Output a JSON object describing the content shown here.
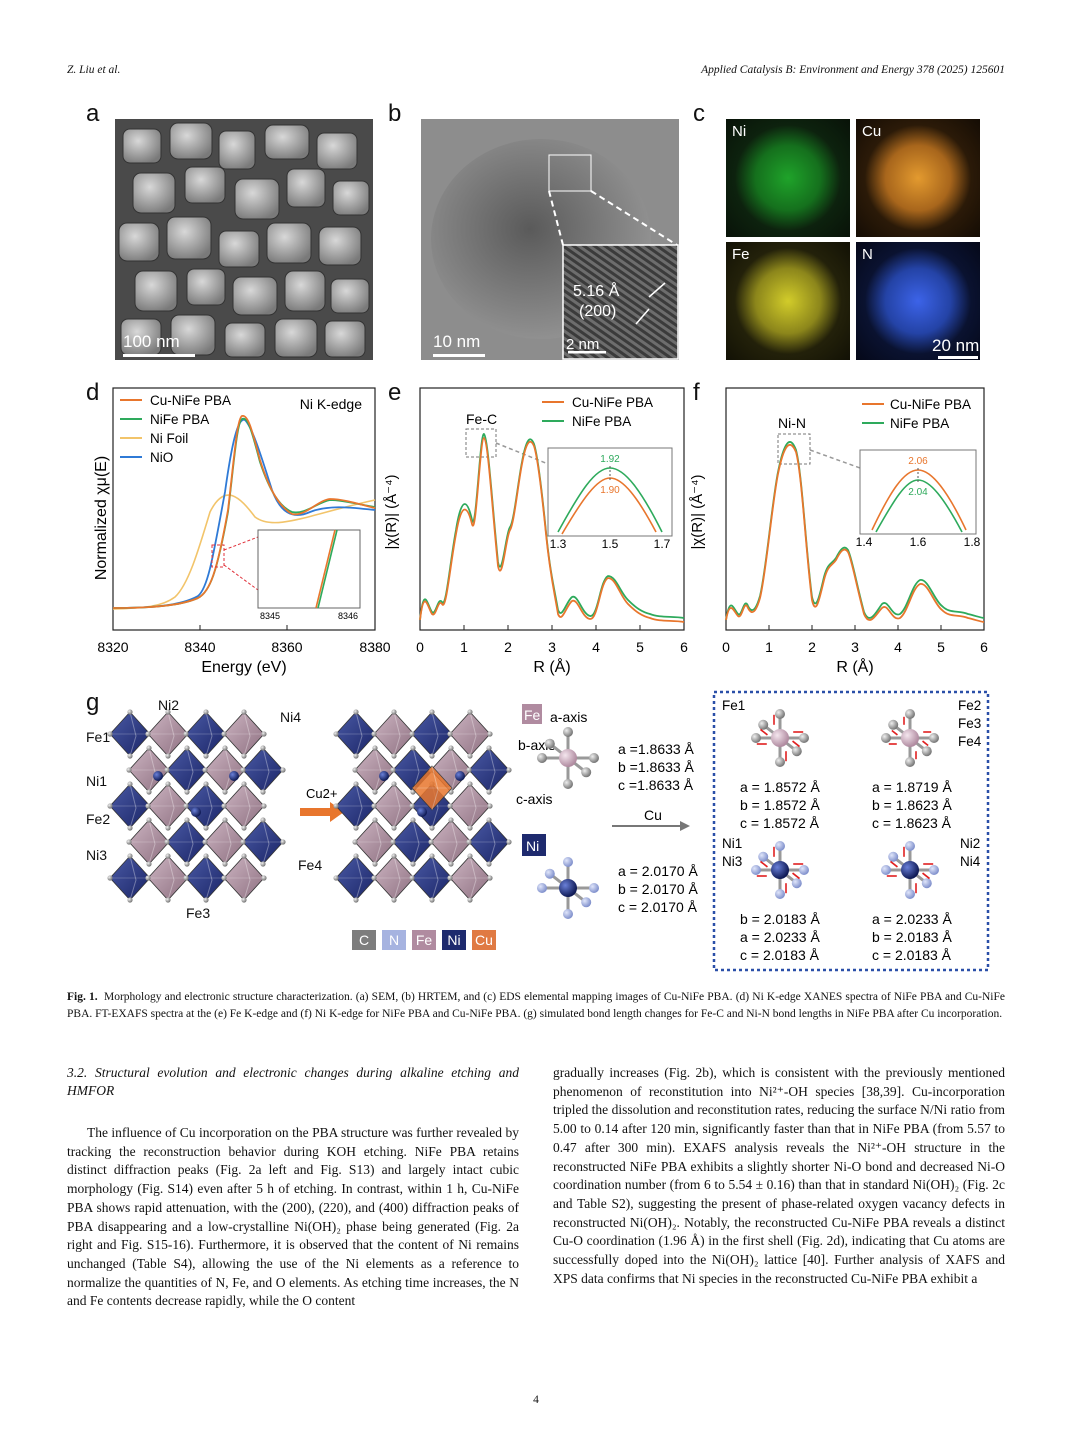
{
  "header": {
    "left": "Z. Liu et al.",
    "right": "Applied Catalysis B: Environment and Energy 378 (2025) 125601"
  },
  "figure": {
    "panels": {
      "a": "a",
      "b": "b",
      "c": "c",
      "d": "d",
      "e": "e",
      "f": "f",
      "g": "g"
    },
    "a": {
      "scalebar": "100 nm"
    },
    "b": {
      "scalebar": "10 nm",
      "inset_scalebar": "2 nm",
      "lattice_spacing": "5.16 Å",
      "plane": "(200)"
    },
    "c": {
      "scalebar": "20 nm",
      "maps": [
        "Ni",
        "Cu",
        "Fe",
        "N"
      ]
    },
    "d": {
      "title": "Ni K-edge",
      "xlabel": "Energy (eV)",
      "ylabel": "Normalized χμ(E)",
      "xticks": [
        "8320",
        "8340",
        "8360",
        "8380"
      ],
      "inset_xticks": [
        "8345",
        "8346"
      ],
      "legend": [
        "Cu-NiFe PBA",
        "NiFe PBA",
        "Ni Foil",
        "NiO"
      ]
    },
    "e": {
      "xlabel": "R (Å)",
      "ylabel": "|χ(R)| (Å⁻⁴)",
      "xticks": [
        "0",
        "1",
        "2",
        "3",
        "4",
        "5",
        "6"
      ],
      "peak_label": "Fe-C",
      "legend": [
        "Cu-NiFe PBA",
        "NiFe PBA"
      ],
      "inset_xticks": [
        "1.3",
        "1.5",
        "1.7"
      ],
      "inset_values": [
        "1.92",
        "1.90"
      ]
    },
    "f": {
      "xlabel": "R (Å)",
      "ylabel": "|χ(R)| (Å⁻⁴)",
      "xticks": [
        "0",
        "1",
        "2",
        "3",
        "4",
        "5",
        "6"
      ],
      "peak_label": "Ni-N",
      "legend": [
        "Cu-NiFe PBA",
        "NiFe PBA"
      ],
      "inset_xticks": [
        "1.4",
        "1.6",
        "1.8"
      ],
      "inset_values": [
        "2.06",
        "2.04"
      ]
    },
    "g": {
      "site_labels": [
        "Ni2",
        "Ni4",
        "Fe1",
        "Ni1",
        "Fe2",
        "Ni3",
        "Fe4",
        "Fe3"
      ],
      "cu_arrow": "Cu2+",
      "axes": [
        "a-axis",
        "b-axis",
        "c-axis"
      ],
      "fe_label": "Fe",
      "ni_label": "Ni",
      "fe_bonds": [
        "a =1.8633 Å",
        "b =1.8633 Å",
        "c =1.8633 Å"
      ],
      "ni_bonds": [
        "a = 2.0170 Å",
        "b = 2.0170 Å",
        "c = 2.0170 Å"
      ],
      "cu_arrow2": "Cu",
      "fe1_label": "Fe1",
      "fe234_label": [
        "Fe2",
        "Fe3",
        "Fe4"
      ],
      "fe1_bonds": [
        "a = 1.8572 Å",
        "b = 1.8572 Å",
        "c = 1.8572 Å"
      ],
      "fe234_bonds": [
        "a = 1.8719 Å",
        "b = 1.8623 Å",
        "c = 1.8623 Å"
      ],
      "ni13_label": [
        "Ni1",
        "Ni3"
      ],
      "ni24_label": [
        "Ni2",
        "Ni4"
      ],
      "ni13_bonds": [
        "b = 2.0183 Å",
        "a = 2.0233 Å",
        "c = 2.0183 Å"
      ],
      "ni24_bonds": [
        "a = 2.0233 Å",
        "b = 2.0183 Å",
        "c = 2.0183 Å"
      ],
      "legend": [
        {
          "label": "C",
          "color": "#7d7d7d"
        },
        {
          "label": "N",
          "color": "#a6b3e0"
        },
        {
          "label": "Fe",
          "color": "#b08ba0"
        },
        {
          "label": "Ni",
          "color": "#1e2a6e"
        },
        {
          "label": "Cu",
          "color": "#e07a43"
        }
      ]
    }
  },
  "caption": {
    "label": "Fig. 1.",
    "text": "Morphology and electronic structure characterization. (a) SEM, (b) HRTEM, and (c) EDS elemental mapping images of Cu-NiFe PBA. (d) Ni K-edge XANES spectra of NiFe PBA and Cu-NiFe PBA. FT-EXAFS spectra at the (e) Fe K-edge and (f) Ni K-edge for NiFe PBA and Cu-NiFe PBA. (g) simulated bond length changes for Fe-C and Ni-N bond lengths in NiFe PBA after Cu incorporation."
  },
  "section": {
    "heading": "3.2.  Structural evolution and electronic changes during alkaline etching and HMFOR"
  },
  "left_col": {
    "p1": "The influence of Cu incorporation on the PBA structure was further revealed by tracking the reconstruction behavior during KOH etching. NiFe PBA retains distinct diffraction peaks (Fig. 2a left and Fig. S13) and largely intact cubic morphology (Fig. S14) even after 5 h of etching. In contrast, within 1 h, Cu-NiFe PBA shows rapid attenuation, with the (200), (220), and (400) diffraction peaks of PBA disappearing and a low-crystalline Ni(OH)₂ phase being generated (Fig. 2a right and Fig. S15-16). Furthermore, it is observed that the content of Ni remains unchanged (Table S4), allowing the use of the Ni elements as a reference to normalize the quantities of N, Fe, and O elements. As etching time increases, the N and Fe contents decrease rapidly, while the O content"
  },
  "right_col": {
    "p1": "gradually increases (Fig. 2b), which is consistent with the previously mentioned phenomenon of reconstitution into Ni²⁺-OH species [38,39]. Cu-incorporation tripled the dissolution and reconstitution rates, reducing the surface N/Ni ratio from 5.00 to 0.14 after 120 min, significantly faster than that in NiFe PBA (from 5.57 to 0.47 after 300 min). EXAFS analysis reveals the Ni²⁺-OH structure in the reconstructed NiFe PBA exhibits a slightly shorter Ni-O bond and decreased Ni-O coordination number (from 6 to 5.54 ± 0.16) than that in standard Ni(OH)₂ (Fig. 2c and Table S2), suggesting the present of phase-related oxygen vacancy defects in reconstructed Ni(OH)₂. Notably, the reconstructed Cu-NiFe PBA reveals a distinct Cu-O coordination (1.96 Å) in the first shell (Fig. 2d), indicating that Cu atoms are successfully doped into the Ni(OH)₂ lattice [40]. Further analysis of XAFS and XPS data confirms that Ni species in the reconstructed Cu-NiFe PBA exhibit a"
  },
  "page_number": "4",
  "colors": {
    "cu_nife": "#e8762d",
    "nife": "#2eaa5c",
    "ni_foil": "#f2c46a",
    "nio": "#2f7ad6",
    "link": "#3b8dc4"
  }
}
